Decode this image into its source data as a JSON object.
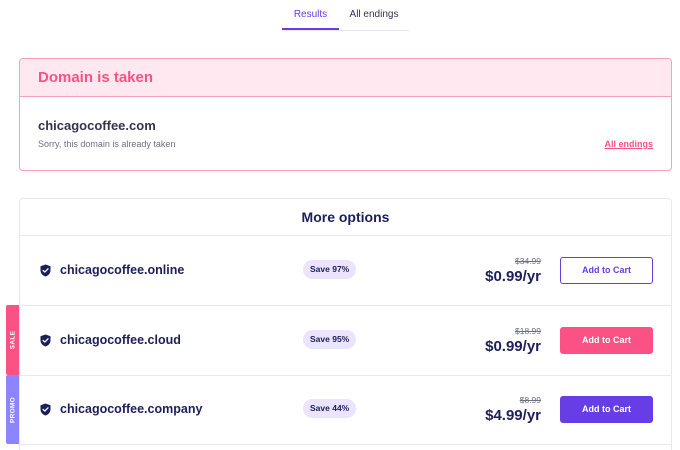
{
  "tabs": [
    {
      "label": "Results"
    },
    {
      "label": "All endings"
    }
  ],
  "taken": {
    "title": "Domain is taken",
    "domain": "chicagocoffee.com",
    "message": "Sorry, this domain is already taken",
    "link_label": "All endings"
  },
  "options": {
    "title": "More options",
    "items": [
      {
        "domain": "chicagocoffee.online",
        "save": "Save 97%",
        "old_price": "$34.99",
        "price": "$0.99/yr",
        "cta": "Add to Cart",
        "flag": ""
      },
      {
        "domain": "chicagocoffee.cloud",
        "save": "Save 95%",
        "old_price": "$18.99",
        "price": "$0.99/yr",
        "cta": "Add to Cart",
        "flag": "SALE"
      },
      {
        "domain": "chicagocoffee.company",
        "save": "Save 44%",
        "old_price": "$8.99",
        "price": "$4.99/yr",
        "cta": "Add to Cart",
        "flag": "PROMO"
      }
    ]
  },
  "colors": {
    "accent": "#673de6",
    "sale": "#fc5185",
    "promo": "#8c85ff",
    "text": "#1d1e5a"
  },
  "icons": {
    "row_icon": "shield-check-icon"
  }
}
